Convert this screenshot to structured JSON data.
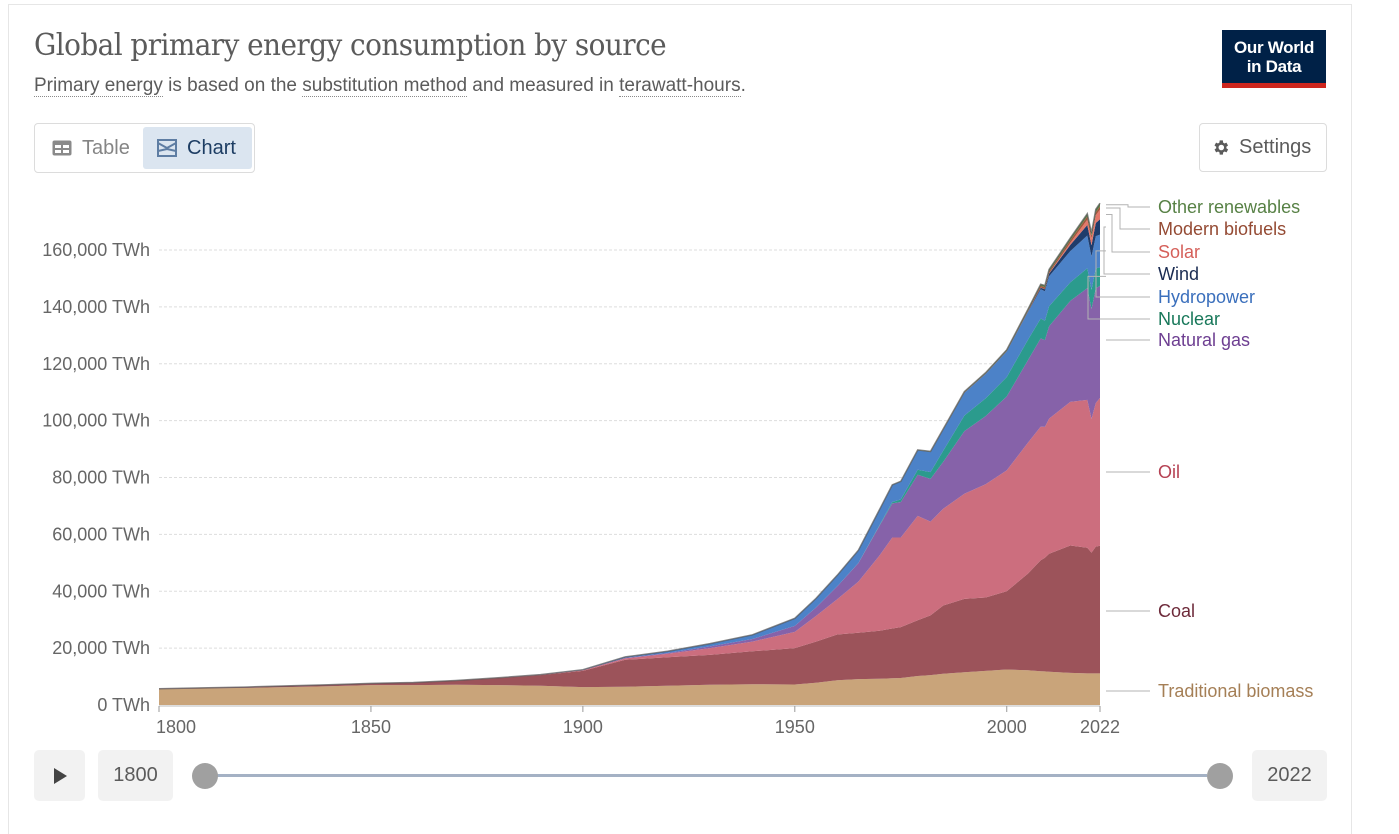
{
  "header": {
    "title": "Global primary energy consumption by source",
    "subtitle_parts": [
      {
        "text": "Primary energy",
        "link": true
      },
      {
        "text": " is based on the ",
        "link": false
      },
      {
        "text": "substitution method",
        "link": true
      },
      {
        "text": " and measured in ",
        "link": false
      },
      {
        "text": "terawatt-hours",
        "link": true
      },
      {
        "text": ".",
        "link": false
      }
    ],
    "logo_line1": "Our World",
    "logo_line2": "in Data"
  },
  "controls": {
    "tabs": [
      {
        "label": "Table",
        "icon": "table-icon",
        "active": false
      },
      {
        "label": "Chart",
        "icon": "chart-icon",
        "active": true
      }
    ],
    "settings_label": "Settings",
    "settings_icon": "gear-icon"
  },
  "timeline": {
    "play_icon": "play-icon",
    "start_year": "1800",
    "end_year": "2022",
    "range_start_fraction": 0,
    "range_end_fraction": 1
  },
  "chart_data": {
    "type": "area",
    "stacked": true,
    "title": "Global primary energy consumption by source",
    "subtitle": "Primary energy is based on the substitution method and measured in terawatt-hours.",
    "xlabel": "",
    "ylabel": "",
    "y_unit": "TWh",
    "xlim": [
      1800,
      2022
    ],
    "ylim": [
      0,
      175000
    ],
    "x_ticks": [
      "1800",
      "1850",
      "1900",
      "1950",
      "2000",
      "2022"
    ],
    "y_ticks": [
      "0 TWh",
      "20,000 TWh",
      "40,000 TWh",
      "60,000 TWh",
      "80,000 TWh",
      "100,000 TWh",
      "120,000 TWh",
      "140,000 TWh",
      "160,000 TWh"
    ],
    "y_tick_values": [
      0,
      20000,
      40000,
      60000,
      80000,
      100000,
      120000,
      140000,
      160000
    ],
    "grid": "horizontal-dashed",
    "legend": "right-inline",
    "x": [
      1800,
      1810,
      1820,
      1830,
      1840,
      1850,
      1860,
      1870,
      1880,
      1890,
      1900,
      1910,
      1920,
      1930,
      1940,
      1950,
      1955,
      1960,
      1965,
      1970,
      1973,
      1975,
      1979,
      1982,
      1985,
      1990,
      1995,
      2000,
      2005,
      2008,
      2009,
      2010,
      2015,
      2019,
      2020,
      2021,
      2022
    ],
    "series": [
      {
        "name": "Traditional biomass",
        "color": "#c9a47a",
        "label_color": "#a57f56",
        "values": [
          5600,
          5800,
          6000,
          6300,
          6600,
          7000,
          7000,
          7100,
          7000,
          6800,
          6300,
          6400,
          6800,
          7100,
          7300,
          7200,
          7800,
          8700,
          9100,
          9200,
          9400,
          9500,
          10200,
          10500,
          11000,
          11500,
          12000,
          12500,
          12200,
          11900,
          11800,
          11700,
          11300,
          11100,
          11100,
          11100,
          11100
        ]
      },
      {
        "name": "Coal",
        "color": "#9c535a",
        "label_color": "#6d2a3a",
        "values": [
          100,
          200,
          300,
          400,
          500,
          600,
          900,
          1500,
          2500,
          3700,
          5700,
          9500,
          10000,
          10500,
          11600,
          12800,
          14500,
          16100,
          16300,
          16900,
          17500,
          17900,
          19600,
          21000,
          24000,
          25800,
          25800,
          27500,
          34000,
          39000,
          40000,
          41500,
          44800,
          44200,
          42500,
          44600,
          44900
        ]
      },
      {
        "name": "Oil",
        "color": "#cc6e7e",
        "label_color": "#b54153",
        "values": [
          0,
          0,
          0,
          0,
          0,
          0,
          0,
          10,
          50,
          150,
          200,
          500,
          1200,
          2400,
          3400,
          5700,
          9000,
          12400,
          18000,
          26500,
          32000,
          31500,
          36700,
          33000,
          34000,
          37000,
          39800,
          42500,
          46000,
          47000,
          46000,
          47500,
          50500,
          52000,
          47000,
          50500,
          52000
        ]
      },
      {
        "name": "Natural gas",
        "color": "#8662a9",
        "label_color": "#6d3e91",
        "values": [
          0,
          0,
          0,
          0,
          0,
          0,
          0,
          0,
          10,
          50,
          100,
          200,
          300,
          600,
          900,
          2100,
          3000,
          4500,
          6500,
          10500,
          12000,
          12500,
          14500,
          15000,
          16500,
          22000,
          24000,
          26000,
          29000,
          31000,
          30500,
          32500,
          35500,
          39300,
          38700,
          40300,
          39400
        ]
      },
      {
        "name": "Nuclear",
        "color": "#2b9b8d",
        "label_color": "#18785a",
        "values": [
          0,
          0,
          0,
          0,
          0,
          0,
          0,
          0,
          0,
          0,
          0,
          0,
          0,
          0,
          0,
          0,
          0,
          0,
          50,
          200,
          500,
          900,
          1700,
          2400,
          3900,
          5500,
          6200,
          6800,
          7200,
          7000,
          6800,
          7000,
          6500,
          7000,
          6700,
          7000,
          6600
        ]
      },
      {
        "name": "Hydropower",
        "color": "#4c82c8",
        "label_color": "#3a6fbc",
        "values": [
          0,
          0,
          0,
          0,
          0,
          0,
          0,
          0,
          0,
          0,
          100,
          300,
          600,
          1000,
          1500,
          2700,
          3200,
          3900,
          4500,
          5500,
          6000,
          6300,
          6900,
          7100,
          7400,
          8000,
          8600,
          9000,
          9700,
          10300,
          10400,
          10600,
          11000,
          11500,
          11700,
          11400,
          11400
        ]
      },
      {
        "name": "Wind",
        "color": "#1f3c6b",
        "label_color": "#1b2c52",
        "values": [
          0,
          0,
          0,
          0,
          0,
          0,
          0,
          0,
          0,
          0,
          0,
          0,
          0,
          0,
          0,
          0,
          0,
          0,
          0,
          0,
          0,
          0,
          0,
          0,
          0,
          10,
          20,
          80,
          250,
          560,
          700,
          900,
          2200,
          3700,
          4000,
          4600,
          5400
        ]
      },
      {
        "name": "Solar",
        "color": "#e4786a",
        "label_color": "#d5605a",
        "values": [
          0,
          0,
          0,
          0,
          0,
          0,
          0,
          0,
          0,
          0,
          0,
          0,
          0,
          0,
          0,
          0,
          0,
          0,
          0,
          0,
          0,
          0,
          0,
          0,
          0,
          0,
          0,
          5,
          10,
          40,
          60,
          90,
          700,
          1900,
          2300,
          2700,
          3400
        ]
      },
      {
        "name": "Modern biofuels",
        "color": "#a2573d",
        "label_color": "#944a33",
        "values": [
          0,
          0,
          0,
          0,
          0,
          0,
          0,
          0,
          0,
          0,
          0,
          0,
          0,
          0,
          0,
          0,
          0,
          0,
          0,
          0,
          0,
          0,
          30,
          60,
          100,
          150,
          150,
          150,
          300,
          600,
          650,
          700,
          900,
          1100,
          1050,
          1100,
          1150
        ]
      },
      {
        "name": "Other renewables",
        "color": "#578145",
        "label_color": "#578145",
        "values": [
          0,
          0,
          0,
          0,
          0,
          0,
          0,
          0,
          0,
          0,
          0,
          0,
          0,
          0,
          0,
          0,
          0,
          0,
          0,
          0,
          50,
          60,
          90,
          110,
          150,
          250,
          300,
          350,
          450,
          550,
          600,
          650,
          800,
          950,
          950,
          1000,
          1100
        ]
      }
    ]
  }
}
